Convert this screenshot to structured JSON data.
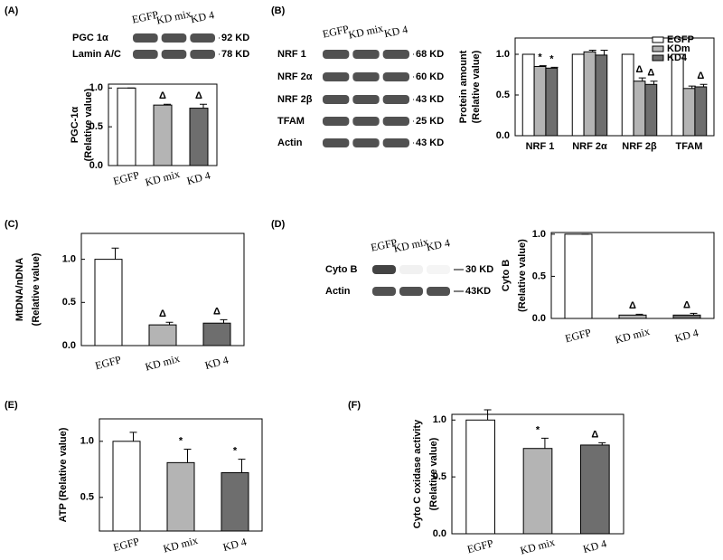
{
  "panels": [
    "(A)",
    "(B)",
    "(C)",
    "(D)",
    "(E)",
    "(F)"
  ],
  "blots": [
    {
      "lanes": [
        "EGFP",
        "KD mix",
        "KD 4"
      ],
      "rows": [
        {
          "name": "PGC 1α",
          "size": "92 KD"
        },
        {
          "name": "Lamin A/C",
          "size": "78 KD"
        }
      ]
    },
    {
      "lanes": [
        "EGFP",
        "KD mix",
        "KD 4"
      ],
      "rows": [
        {
          "name": "NRF 1",
          "size": "68 KD"
        },
        {
          "name": "NRF 2α",
          "size": "60 KD"
        },
        {
          "name": "NRF 2β",
          "size": "43 KD"
        },
        {
          "name": "TFAM",
          "size": "25 KD"
        },
        {
          "name": "Actin",
          "size": "43 KD"
        }
      ]
    },
    {
      "lanes": [
        "EGFP",
        "KD mix",
        "KD 4"
      ],
      "rows": [
        {
          "name": "Cyto B",
          "size": "30 KD"
        },
        {
          "name": "Actin",
          "size": "43KD"
        }
      ]
    }
  ],
  "chart_data": [
    {
      "type": "bar",
      "ylabel": [
        "PGC-1α",
        "(Relative value)"
      ],
      "categories": [
        "EGFP",
        "KD mix",
        "KD 4"
      ],
      "values": [
        1.0,
        0.78,
        0.74
      ],
      "errors": [
        0,
        0.01,
        0.05
      ],
      "colors": [
        "#ffffff",
        "#b4b4b4",
        "#6e6e6e"
      ],
      "annotations": [
        null,
        "Δ",
        "Δ"
      ],
      "ylim": [
        0,
        1.05
      ],
      "yticks": [
        {
          "value": 0,
          "label": "0.0"
        },
        {
          "value": 0.5,
          "label": "0.5"
        },
        {
          "value": 1,
          "label": "1.0"
        }
      ]
    },
    {
      "type": "grouped_bar",
      "ylabel": [
        "Protein amount",
        "(Relative value)"
      ],
      "categories": [
        "NRF 1",
        "NRF 2α",
        "NRF 2β",
        "TFAM"
      ],
      "series": [
        {
          "name": "EGFP",
          "color": "#ffffff",
          "values": [
            1.0,
            1.0,
            1.0,
            1.0
          ],
          "errors": [
            0,
            0,
            0,
            0
          ],
          "annotations": [
            null,
            null,
            null,
            null
          ]
        },
        {
          "name": "KDm",
          "color": "#b4b4b4",
          "values": [
            0.85,
            1.03,
            0.67,
            0.58
          ],
          "errors": [
            0.01,
            0.02,
            0.04,
            0.03
          ],
          "annotations": [
            "*",
            null,
            "Δ",
            null
          ]
        },
        {
          "name": "KD4",
          "color": "#6e6e6e",
          "values": [
            0.83,
            0.99,
            0.63,
            0.6
          ],
          "errors": [
            0.01,
            0.06,
            0.04,
            0.03
          ],
          "annotations": [
            "*",
            null,
            "Δ",
            "Δ"
          ]
        }
      ],
      "legend": "upper right",
      "ylim": [
        0,
        1.2
      ],
      "yticks": [
        {
          "value": 0,
          "label": "0.0"
        },
        {
          "value": 0.5,
          "label": "0.5"
        },
        {
          "value": 1,
          "label": "1.0"
        }
      ]
    },
    {
      "type": "bar",
      "ylabel": [
        "MtDNA/nDNA",
        "(Relative value)"
      ],
      "categories": [
        "EGFP",
        "KD mix",
        "KD 4"
      ],
      "values": [
        1.0,
        0.24,
        0.26
      ],
      "errors": [
        0.13,
        0.03,
        0.04
      ],
      "colors": [
        "#ffffff",
        "#b4b4b4",
        "#6e6e6e"
      ],
      "annotations": [
        null,
        "Δ",
        "Δ"
      ],
      "ylim": [
        0,
        1.3
      ],
      "yticks": [
        {
          "value": 0,
          "label": "0.0"
        },
        {
          "value": 0.5,
          "label": "0.5"
        },
        {
          "value": 1,
          "label": "1.0"
        }
      ]
    },
    {
      "type": "bar",
      "ylabel": [
        "Cyto B",
        "(Relative value)"
      ],
      "categories": [
        "EGFP",
        "KD mix",
        "KD 4"
      ],
      "values": [
        1.0,
        0.04,
        0.04
      ],
      "errors": [
        0,
        0.01,
        0.02
      ],
      "colors": [
        "#ffffff",
        "#b4b4b4",
        "#6e6e6e"
      ],
      "annotations": [
        null,
        "Δ",
        "Δ"
      ],
      "ylim": [
        0,
        1.02
      ],
      "yticks": [
        {
          "value": 0,
          "label": "0.0"
        },
        {
          "value": 0.5,
          "label": "0.5"
        },
        {
          "value": 1,
          "label": "1.0"
        }
      ]
    },
    {
      "type": "bar",
      "ylabel": [
        "ATP (Relative value)"
      ],
      "categories": [
        "EGFP",
        "KD mix",
        "KD 4"
      ],
      "values": [
        1.0,
        0.81,
        0.72
      ],
      "errors": [
        0.08,
        0.12,
        0.12
      ],
      "colors": [
        "#ffffff",
        "#b4b4b4",
        "#6e6e6e"
      ],
      "annotations": [
        null,
        "*",
        "*"
      ],
      "ylim": [
        0.2,
        1.2
      ],
      "yticks": [
        {
          "value": 0.5,
          "label": "0.5"
        },
        {
          "value": 1,
          "label": "1.0"
        }
      ]
    },
    {
      "type": "bar",
      "ylabel": [
        "Cyto C oxidase activity",
        "(Relative value)"
      ],
      "categories": [
        "EGFP",
        "KD mix",
        "KD 4"
      ],
      "values": [
        1.0,
        0.75,
        0.78
      ],
      "errors": [
        0.09,
        0.09,
        0.02
      ],
      "colors": [
        "#ffffff",
        "#b4b4b4",
        "#6e6e6e"
      ],
      "annotations": [
        null,
        "*",
        "Δ"
      ],
      "ylim": [
        0,
        1.05
      ],
      "yticks": [
        {
          "value": 0,
          "label": "0.0"
        },
        {
          "value": 0.5,
          "label": "0.5"
        },
        {
          "value": 1,
          "label": "1.0"
        }
      ]
    }
  ]
}
